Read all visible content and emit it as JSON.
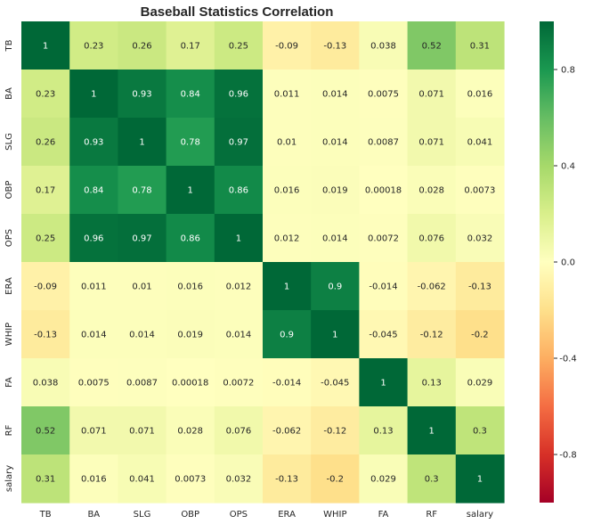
{
  "chart_data": {
    "type": "heatmap",
    "title": "Baseball Statistics Correlation",
    "x_labels": [
      "TB",
      "BA",
      "SLG",
      "OBP",
      "OPS",
      "ERA",
      "WHIP",
      "FA",
      "RF",
      "salary"
    ],
    "y_labels": [
      "TB",
      "BA",
      "SLG",
      "OBP",
      "OPS",
      "ERA",
      "WHIP",
      "FA",
      "RF",
      "salary"
    ],
    "cells": [
      [
        "1",
        "0.23",
        "0.26",
        "0.17",
        "0.25",
        "-0.09",
        "-0.13",
        "0.038",
        "0.52",
        "0.31"
      ],
      [
        "0.23",
        "1",
        "0.93",
        "0.84",
        "0.96",
        "0.011",
        "0.014",
        "0.0075",
        "0.071",
        "0.016"
      ],
      [
        "0.26",
        "0.93",
        "1",
        "0.78",
        "0.97",
        "0.01",
        "0.014",
        "0.0087",
        "0.071",
        "0.041"
      ],
      [
        "0.17",
        "0.84",
        "0.78",
        "1",
        "0.86",
        "0.016",
        "0.019",
        "0.00018",
        "0.028",
        "0.0073"
      ],
      [
        "0.25",
        "0.96",
        "0.97",
        "0.86",
        "1",
        "0.012",
        "0.014",
        "0.0072",
        "0.076",
        "0.032"
      ],
      [
        "-0.09",
        "0.011",
        "0.01",
        "0.016",
        "0.012",
        "1",
        "0.9",
        "-0.014",
        "-0.062",
        "-0.13"
      ],
      [
        "-0.13",
        "0.014",
        "0.014",
        "0.019",
        "0.014",
        "0.9",
        "1",
        "-0.045",
        "-0.12",
        "-0.2"
      ],
      [
        "0.038",
        "0.0075",
        "0.0087",
        "0.00018",
        "0.0072",
        "-0.014",
        "-0.045",
        "1",
        "0.13",
        "0.029"
      ],
      [
        "0.52",
        "0.071",
        "0.071",
        "0.028",
        "0.076",
        "-0.062",
        "-0.12",
        "0.13",
        "1",
        "0.3"
      ],
      [
        "0.31",
        "0.016",
        "0.041",
        "0.0073",
        "0.032",
        "-0.13",
        "-0.2",
        "0.029",
        "0.3",
        "1"
      ]
    ],
    "colormap": "RdYlGn",
    "vmin": -1,
    "vmax": 1,
    "colorbar_ticks": [
      "-0.8",
      "-0.4",
      "0.0",
      "0.4",
      "0.8"
    ],
    "grid": false
  }
}
